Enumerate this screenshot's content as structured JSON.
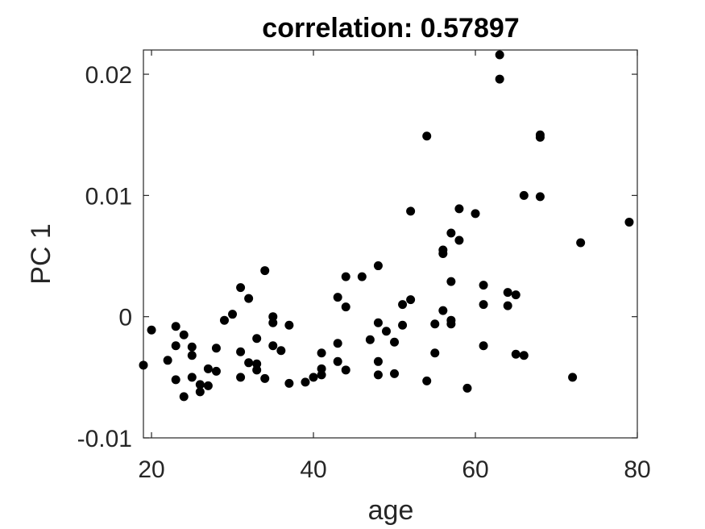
{
  "chart_data": {
    "type": "scatter",
    "title": "correlation: 0.57897",
    "xlabel": "age",
    "ylabel": "PC 1",
    "xlim": [
      19,
      80
    ],
    "ylim": [
      -0.01,
      0.022
    ],
    "xticks": [
      20,
      40,
      60,
      80
    ],
    "xtick_labels": [
      "20",
      "40",
      "60",
      "80"
    ],
    "yticks": [
      -0.01,
      0,
      0.01,
      0.02
    ],
    "ytick_labels": [
      "-0.01",
      "0",
      "0.01",
      "0.02"
    ],
    "grid": false,
    "marker_color": "#000000",
    "points": [
      {
        "x": 19,
        "y": -0.004
      },
      {
        "x": 20,
        "y": -0.0011
      },
      {
        "x": 22,
        "y": -0.0036
      },
      {
        "x": 23,
        "y": -0.0008
      },
      {
        "x": 23,
        "y": -0.0024
      },
      {
        "x": 23,
        "y": -0.0052
      },
      {
        "x": 24,
        "y": -0.0015
      },
      {
        "x": 24,
        "y": -0.0066
      },
      {
        "x": 25,
        "y": -0.0025
      },
      {
        "x": 25,
        "y": -0.0032
      },
      {
        "x": 25,
        "y": -0.005
      },
      {
        "x": 26,
        "y": -0.0056
      },
      {
        "x": 26,
        "y": -0.0062
      },
      {
        "x": 27,
        "y": -0.0043
      },
      {
        "x": 27,
        "y": -0.0057
      },
      {
        "x": 28,
        "y": -0.0026
      },
      {
        "x": 28,
        "y": -0.0045
      },
      {
        "x": 29,
        "y": -0.0003
      },
      {
        "x": 30,
        "y": 0.0002
      },
      {
        "x": 31,
        "y": 0.0024
      },
      {
        "x": 31,
        "y": -0.0029
      },
      {
        "x": 31,
        "y": -0.005
      },
      {
        "x": 32,
        "y": 0.0015
      },
      {
        "x": 32,
        "y": -0.0038
      },
      {
        "x": 33,
        "y": -0.0018
      },
      {
        "x": 33,
        "y": -0.0039
      },
      {
        "x": 33,
        "y": -0.0044
      },
      {
        "x": 34,
        "y": 0.0038
      },
      {
        "x": 34,
        "y": -0.0051
      },
      {
        "x": 35,
        "y": 0.0
      },
      {
        "x": 35,
        "y": -0.0005
      },
      {
        "x": 35,
        "y": -0.0024
      },
      {
        "x": 36,
        "y": -0.0028
      },
      {
        "x": 37,
        "y": -0.0007
      },
      {
        "x": 37,
        "y": -0.0055
      },
      {
        "x": 39,
        "y": -0.0054
      },
      {
        "x": 40,
        "y": -0.005
      },
      {
        "x": 41,
        "y": -0.003
      },
      {
        "x": 41,
        "y": -0.0043
      },
      {
        "x": 41,
        "y": -0.0048
      },
      {
        "x": 43,
        "y": 0.0016
      },
      {
        "x": 43,
        "y": -0.0022
      },
      {
        "x": 43,
        "y": -0.0037
      },
      {
        "x": 44,
        "y": 0.0033
      },
      {
        "x": 44,
        "y": 0.0008
      },
      {
        "x": 44,
        "y": -0.0044
      },
      {
        "x": 46,
        "y": 0.0033
      },
      {
        "x": 47,
        "y": -0.0019
      },
      {
        "x": 48,
        "y": 0.0042
      },
      {
        "x": 48,
        "y": -0.0005
      },
      {
        "x": 48,
        "y": -0.0037
      },
      {
        "x": 48,
        "y": -0.0048
      },
      {
        "x": 49,
        "y": -0.0012
      },
      {
        "x": 50,
        "y": -0.0021
      },
      {
        "x": 50,
        "y": -0.0047
      },
      {
        "x": 51,
        "y": 0.001
      },
      {
        "x": 51,
        "y": -0.0007
      },
      {
        "x": 52,
        "y": 0.0087
      },
      {
        "x": 52,
        "y": 0.0014
      },
      {
        "x": 54,
        "y": 0.0149
      },
      {
        "x": 54,
        "y": -0.0053
      },
      {
        "x": 55,
        "y": -0.0006
      },
      {
        "x": 55,
        "y": -0.003
      },
      {
        "x": 56,
        "y": 0.0055
      },
      {
        "x": 56,
        "y": 0.0052
      },
      {
        "x": 56,
        "y": 0.0005
      },
      {
        "x": 57,
        "y": 0.0069
      },
      {
        "x": 57,
        "y": 0.0029
      },
      {
        "x": 57,
        "y": -0.0003
      },
      {
        "x": 57,
        "y": -0.0006
      },
      {
        "x": 58,
        "y": 0.0089
      },
      {
        "x": 58,
        "y": 0.0063
      },
      {
        "x": 59,
        "y": -0.0059
      },
      {
        "x": 60,
        "y": 0.0085
      },
      {
        "x": 61,
        "y": 0.0026
      },
      {
        "x": 61,
        "y": 0.001
      },
      {
        "x": 61,
        "y": -0.0024
      },
      {
        "x": 63,
        "y": 0.0216
      },
      {
        "x": 63,
        "y": 0.0196
      },
      {
        "x": 64,
        "y": 0.002
      },
      {
        "x": 64,
        "y": 0.0009
      },
      {
        "x": 65,
        "y": 0.0018
      },
      {
        "x": 65,
        "y": -0.0031
      },
      {
        "x": 66,
        "y": 0.01
      },
      {
        "x": 66,
        "y": -0.0032
      },
      {
        "x": 68,
        "y": 0.015
      },
      {
        "x": 68,
        "y": 0.0148
      },
      {
        "x": 68,
        "y": 0.0099
      },
      {
        "x": 72,
        "y": -0.005
      },
      {
        "x": 73,
        "y": 0.0061
      },
      {
        "x": 79,
        "y": 0.0078
      }
    ]
  }
}
